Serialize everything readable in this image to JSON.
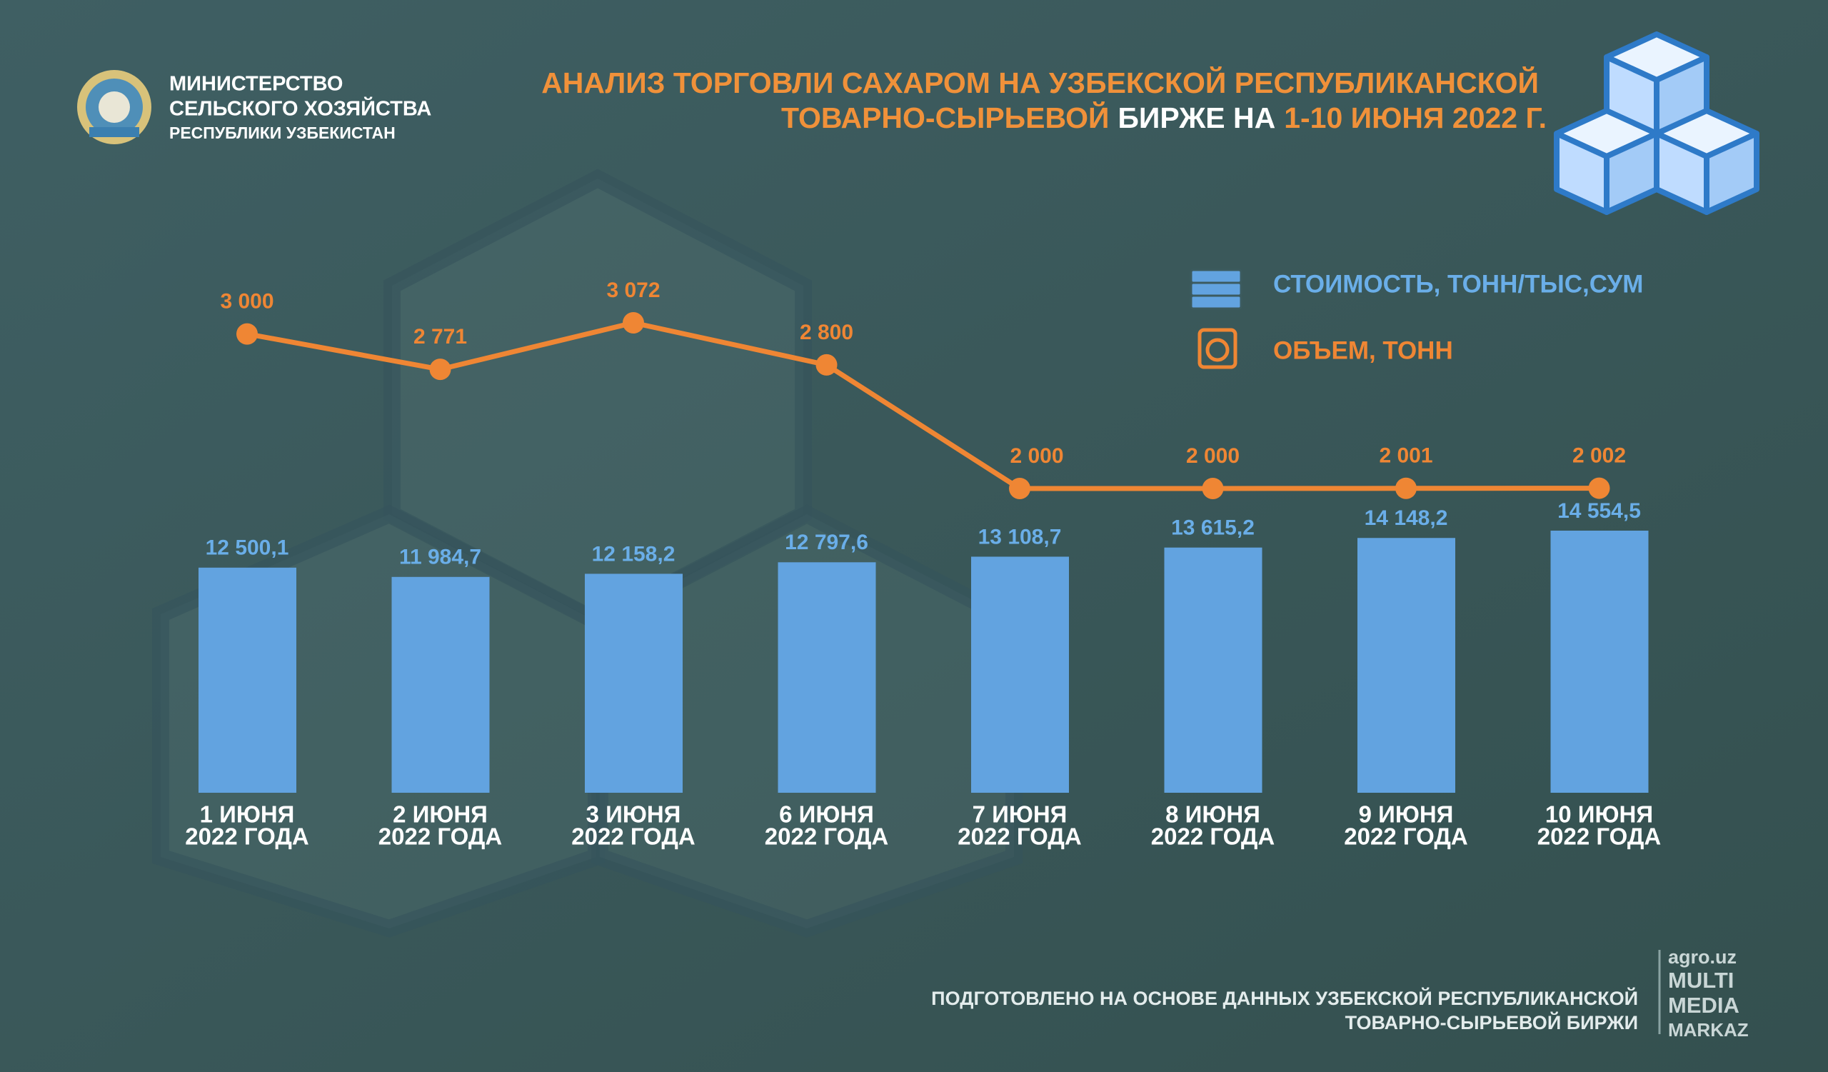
{
  "header": {
    "ministry": [
      "МИНИСТЕРСТВО",
      "СЕЛЬСКОГО ХОЗЯЙСТВА",
      "РЕСПУБЛИКИ УЗБЕКИСТАН"
    ],
    "title": [
      [
        {
          "text": "АНАЛИЗ ТОРГОВЛИ САХАРОМ НА УЗБЕКСКОЙ РЕСПУБЛИКАНСКОЙ",
          "color": "#f0913a"
        }
      ],
      [
        {
          "text": "ТОВАРНО-СЫРЬЕВОЙ",
          "color": "#f0913a"
        },
        {
          "text": "БИРЖЕ НА",
          "color": "#ffffff"
        },
        {
          "text": "1-10 ИЮНЯ 2022 Г.",
          "color": "#f0913a"
        }
      ]
    ]
  },
  "chart_data": {
    "type": "combo",
    "categories": [
      [
        "1 ИЮНЯ",
        "2022 ГОДА"
      ],
      [
        "2 ИЮНЯ",
        "2022 ГОДА"
      ],
      [
        "3 ИЮНЯ",
        "2022 ГОДА"
      ],
      [
        "6 ИЮНЯ",
        "2022 ГОДА"
      ],
      [
        "7 ИЮНЯ",
        "2022 ГОДА"
      ],
      [
        "8 ИЮНЯ",
        "2022 ГОДА"
      ],
      [
        "9 ИЮНЯ",
        "2022 ГОДА"
      ],
      [
        "10 ИЮНЯ",
        "2022 ГОДА"
      ]
    ],
    "series": [
      {
        "name": "СТОИМОСТЬ, ТОНН/ТЫС,СУМ",
        "type": "bar",
        "color": "#62a3e0",
        "label_color": "#6aaee8",
        "values": [
          12500.1,
          11984.7,
          12158.2,
          12797.6,
          13108.7,
          13615.2,
          14148.2,
          14554.5
        ],
        "value_labels": [
          "12 500,1",
          "11 984,7",
          "12 158,2",
          "12 797,6",
          "13 108,7",
          "13 615,2",
          "14 148,2",
          "14 554,5"
        ]
      },
      {
        "name": "ОБЪЕМ, ТОНН",
        "type": "line",
        "color": "#ef8634",
        "label_color": "#ef8634",
        "values": [
          3000,
          2771,
          3072,
          2800,
          2000,
          2000,
          2001,
          2002
        ],
        "value_labels": [
          "3 000",
          "2 771",
          "3 072",
          "2 800",
          "2 000",
          "2 000",
          "2 001",
          "2 002"
        ]
      }
    ]
  },
  "footer": {
    "note": [
      "ПОДГОТОВЛЕНО НА ОСНОВЕ ДАННЫХ УЗБЕКСКОЙ РЕСПУБЛИКАНСКОЙ",
      "ТОВАРНО-СЫРЬЕВОЙ БИРЖИ"
    ],
    "brand": [
      "agro.uz",
      "MULTI",
      "MEDIA",
      "MARKAZ"
    ]
  }
}
